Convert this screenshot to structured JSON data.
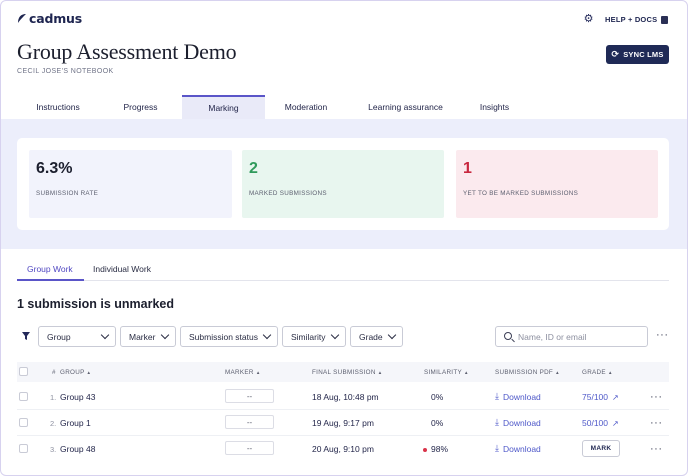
{
  "app": {
    "logo": "cadmus"
  },
  "header": {
    "help_label": "HELP + DOCS",
    "title": "Group Assessment Demo",
    "subtitle": "CECIL JOSE'S NOTEBOOK",
    "sync_label": "SYNC LMS"
  },
  "tabs": [
    {
      "label": "Instructions",
      "active": false
    },
    {
      "label": "Progress",
      "active": false
    },
    {
      "label": "Marking",
      "active": true
    },
    {
      "label": "Moderation",
      "active": false
    },
    {
      "label": "Learning assurance",
      "active": false
    },
    {
      "label": "Insights",
      "active": false
    }
  ],
  "stats": [
    {
      "value": "6.3%",
      "label": "SUBMISSION RATE"
    },
    {
      "value": "2",
      "label": "MARKED SUBMISSIONS"
    },
    {
      "value": "1",
      "label": "YET TO BE MARKED SUBMISSIONS"
    }
  ],
  "work_tabs": [
    {
      "label": "Group Work",
      "active": true
    },
    {
      "label": "Individual Work",
      "active": false
    }
  ],
  "section_title": "1 submission is unmarked",
  "filters": {
    "dropdowns": [
      "Group",
      "Marker",
      "Submission status",
      "Similarity",
      "Grade"
    ],
    "search_placeholder": "Name, ID or email"
  },
  "table": {
    "columns": [
      "#",
      "GROUP",
      "MARKER",
      "FINAL SUBMISSION",
      "SIMILARITY",
      "SUBMISSION PDF",
      "GRADE"
    ],
    "sort_glyph": "▲",
    "rows": [
      {
        "num": "1.",
        "group": "Group 43",
        "marker": "--",
        "final_submission": "18 Aug, 10:48 pm",
        "similarity": "0%",
        "similarity_flag": false,
        "pdf": "Download",
        "grade": "75/100",
        "action": ""
      },
      {
        "num": "2.",
        "group": "Group 1",
        "marker": "--",
        "final_submission": "19 Aug, 9:17 pm",
        "similarity": "0%",
        "similarity_flag": false,
        "pdf": "Download",
        "grade": "50/100",
        "action": ""
      },
      {
        "num": "3.",
        "group": "Group 48",
        "marker": "--",
        "final_submission": "20 Aug, 9:10 pm",
        "similarity": "98%",
        "similarity_flag": true,
        "pdf": "Download",
        "grade": "",
        "action": "MARK"
      }
    ]
  },
  "colors": {
    "accent": "#5a55c8",
    "navy": "#1f2a56",
    "marked": "#2f9a5b",
    "unmarked": "#c8283f",
    "link": "#4f59c9"
  }
}
